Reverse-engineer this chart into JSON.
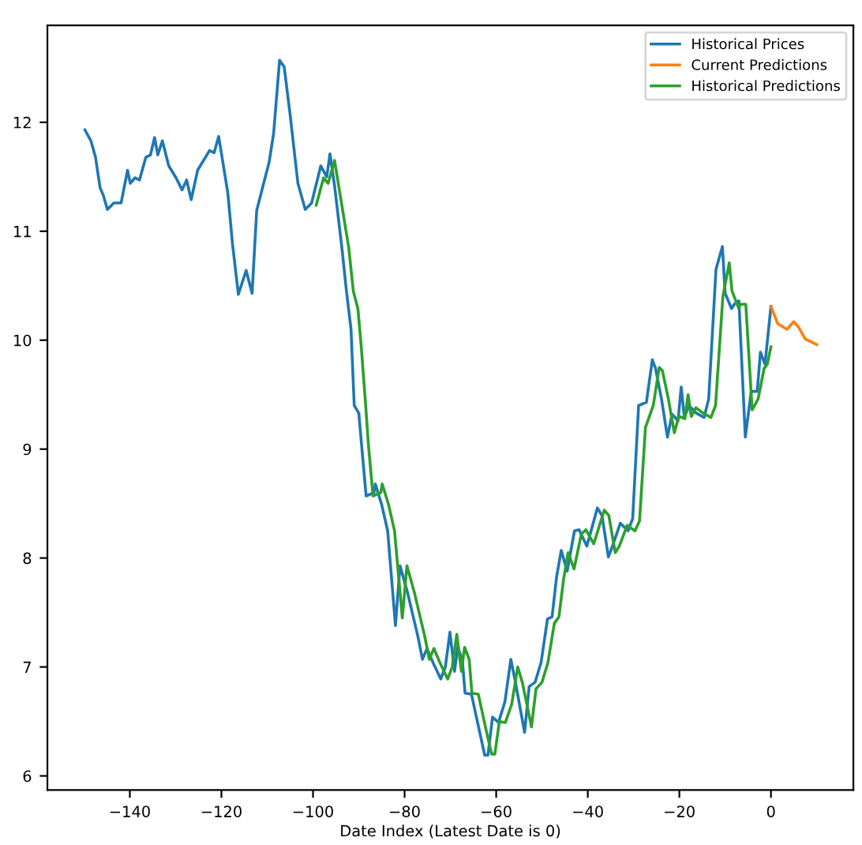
{
  "chart_data": {
    "type": "line",
    "xlabel": "Date Index (Latest Date is 0)",
    "xlim": [
      -158,
      18
    ],
    "ylim": [
      5.87,
      12.89
    ],
    "xticks": [
      {
        "value": -140,
        "label": "−140"
      },
      {
        "value": -120,
        "label": "−120"
      },
      {
        "value": -100,
        "label": "−100"
      },
      {
        "value": -80,
        "label": "−80"
      },
      {
        "value": -60,
        "label": "−60"
      },
      {
        "value": -40,
        "label": "−40"
      },
      {
        "value": -20,
        "label": "−20"
      },
      0
    ],
    "yticks": [
      6,
      7,
      8,
      9,
      10,
      11,
      12
    ],
    "grid": false,
    "legend": "top right",
    "series": [
      {
        "name": "Historical Prices",
        "color": "#1f77b4",
        "x": [
          -149.8,
          -148.5,
          -147.5,
          -146.5,
          -145.8,
          -144.9,
          -143.5,
          -141.9,
          -140.5,
          -139.9,
          -138.9,
          -137.9,
          -136.5,
          -135.5,
          -134.6,
          -133.9,
          -132.9,
          -131.5,
          -129.9,
          -128.6,
          -127.6,
          -126.6,
          -125.2,
          -123.9,
          -122.6,
          -121.6,
          -120.6,
          -118.6,
          -117.6,
          -116.3,
          -114.6,
          -113.3,
          -112.3,
          -110.9,
          -109.6,
          -108.6,
          -107.3,
          -106.3,
          -105,
          -103.3,
          -101.7,
          -100.3,
          -98.3,
          -97,
          -96.3,
          -95.3,
          -93.7,
          -92.7,
          -91.7,
          -91,
          -90,
          -89.4,
          -88.4,
          -86.7,
          -86.4,
          -85,
          -83.7,
          -82,
          -81,
          -79.4,
          -77.1,
          -76.1,
          -75.1,
          -73.8,
          -72.1,
          -71.1,
          -70.1,
          -69.1,
          -68.4,
          -67.4,
          -66.8,
          -65.4,
          -63.8,
          -62.5,
          -61.8,
          -60.8,
          -59.5,
          -58.1,
          -56.8,
          -55.8,
          -53.8,
          -52.8,
          -51.5,
          -50.2,
          -48.8,
          -47.8,
          -46.8,
          -45.8,
          -44.5,
          -42.9,
          -41.9,
          -40.2,
          -37.9,
          -36.9,
          -35.5,
          -34.6,
          -32.9,
          -31.2,
          -30.2,
          -28.9,
          -27.2,
          -25.9,
          -25.2,
          -23.9,
          -22.6,
          -21.6,
          -20.3,
          -19.6,
          -18.9,
          -17.9,
          -16.3,
          -14.6,
          -13.6,
          -12,
          -10.6,
          -10,
          -8.6,
          -8,
          -7,
          -5.6,
          -4.3,
          -3,
          -2.3,
          -1.3,
          0
        ],
        "values": [
          11.93,
          11.83,
          11.68,
          11.4,
          11.33,
          11.2,
          11.26,
          11.26,
          11.56,
          11.44,
          11.49,
          11.47,
          11.68,
          11.7,
          11.86,
          11.7,
          11.83,
          11.6,
          11.49,
          11.38,
          11.47,
          11.29,
          11.56,
          11.65,
          11.74,
          11.72,
          11.87,
          11.35,
          10.89,
          10.42,
          10.64,
          10.43,
          11.19,
          11.42,
          11.63,
          11.9,
          12.57,
          12.51,
          12.07,
          11.44,
          11.2,
          11.26,
          11.6,
          11.5,
          11.71,
          11.42,
          10.85,
          10.45,
          10.1,
          9.4,
          9.33,
          9.04,
          8.57,
          8.6,
          8.68,
          8.49,
          8.25,
          7.38,
          7.93,
          7.69,
          7.28,
          7.07,
          7.17,
          7.04,
          6.89,
          7.0,
          7.32,
          6.96,
          7.18,
          7.07,
          6.76,
          6.75,
          6.44,
          6.19,
          6.19,
          6.54,
          6.49,
          6.68,
          7.07,
          6.86,
          6.4,
          6.82,
          6.86,
          7.04,
          7.44,
          7.46,
          7.83,
          8.07,
          7.88,
          8.25,
          8.26,
          8.11,
          8.46,
          8.39,
          8.01,
          8.11,
          8.32,
          8.25,
          8.36,
          9.4,
          9.43,
          9.82,
          9.74,
          9.46,
          9.11,
          9.32,
          9.26,
          9.57,
          9.29,
          9.4,
          9.33,
          9.29,
          9.46,
          10.65,
          10.86,
          10.43,
          10.29,
          10.33,
          10.36,
          9.11,
          9.53,
          9.53,
          9.89,
          9.78,
          10.31
        ]
      },
      {
        "name": "Current Predictions",
        "color": "#ff7f0e",
        "x": [
          0,
          1.5,
          3.5,
          5,
          6,
          7.5,
          10
        ],
        "values": [
          10.31,
          10.15,
          10.1,
          10.17,
          10.12,
          10.01,
          9.96
        ]
      },
      {
        "name": "Historical Predictions",
        "color": "#2ca02c",
        "x": [
          -99.3,
          -97.7,
          -96.7,
          -95.3,
          -92.2,
          -91.2,
          -90.2,
          -89.5,
          -88.5,
          -87.9,
          -86.9,
          -85.2,
          -84.9,
          -83.5,
          -82.2,
          -80.5,
          -79.5,
          -77.9,
          -75.6,
          -74.6,
          -73.6,
          -72.3,
          -70.6,
          -69.6,
          -68.6,
          -67.6,
          -66.9,
          -65.9,
          -65.3,
          -63.9,
          -62.3,
          -61,
          -60.3,
          -59.3,
          -58,
          -56.6,
          -55.3,
          -54.3,
          -52.3,
          -51.3,
          -50,
          -48.7,
          -47.3,
          -46.3,
          -45.3,
          -44.3,
          -43,
          -41.4,
          -40.4,
          -38.7,
          -36.4,
          -35.4,
          -34,
          -33.1,
          -31.4,
          -29.7,
          -28.7,
          -27.4,
          -25.7,
          -24.4,
          -23.7,
          -22.4,
          -21.1,
          -20.1,
          -18.8,
          -18.1,
          -17.4,
          -16.4,
          -14.8,
          -13.1,
          -12.1,
          -10.5,
          -9.1,
          -8.5,
          -7.1,
          -6.5,
          -5.5,
          -4.1,
          -2.8,
          -1.5,
          -0.8,
          0
        ],
        "values": [
          11.24,
          11.49,
          11.44,
          11.65,
          10.85,
          10.45,
          10.29,
          9.96,
          9.4,
          9.04,
          8.57,
          8.6,
          8.68,
          8.49,
          8.25,
          7.45,
          7.93,
          7.69,
          7.28,
          7.07,
          7.17,
          7.04,
          6.89,
          7.0,
          7.3,
          6.96,
          7.18,
          7.07,
          6.76,
          6.75,
          6.44,
          6.2,
          6.2,
          6.5,
          6.49,
          6.66,
          7.0,
          6.86,
          6.45,
          6.8,
          6.86,
          7.04,
          7.4,
          7.46,
          7.8,
          8.05,
          7.9,
          8.22,
          8.26,
          8.13,
          8.44,
          8.39,
          8.05,
          8.11,
          8.3,
          8.25,
          8.34,
          9.2,
          9.4,
          9.75,
          9.72,
          9.46,
          9.15,
          9.3,
          9.28,
          9.5,
          9.3,
          9.38,
          9.33,
          9.29,
          9.4,
          10.4,
          10.71,
          10.45,
          10.3,
          10.33,
          10.33,
          9.36,
          9.46,
          9.74,
          9.78,
          9.94
        ]
      }
    ]
  }
}
